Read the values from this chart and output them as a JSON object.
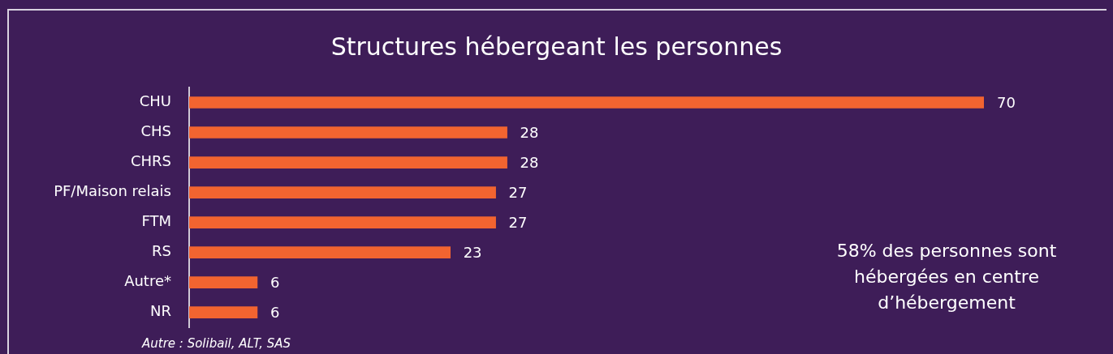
{
  "chart_data": {
    "type": "bar",
    "orientation": "horizontal",
    "title": "Structures hébergeant les personnes",
    "categories": [
      "CHU",
      "CHS",
      "CHRS",
      "PF/Maison relais",
      "FTM",
      "RS",
      "Autre*",
      "NR"
    ],
    "values": [
      70,
      28,
      28,
      27,
      27,
      23,
      6,
      6
    ],
    "color": "#f26430",
    "data_labels": true,
    "annotations": [
      "58% des personnes sont hébergées en centre d’hébergement",
      "Autre : Solibail, ALT, SAS"
    ]
  }
}
